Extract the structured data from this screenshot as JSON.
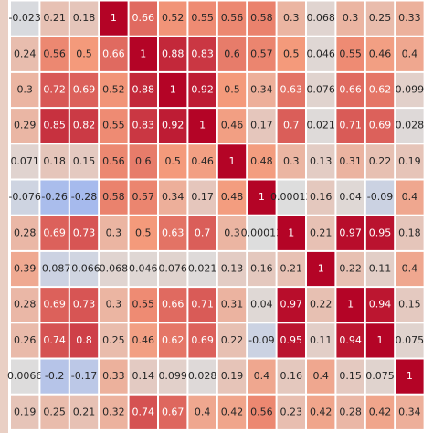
{
  "chart_data": {
    "type": "heatmap",
    "colormap": "coolwarm",
    "zlim": [
      -1,
      1
    ],
    "z": [
      [
        -0.023,
        0.21,
        0.18,
        1,
        0.66,
        0.52,
        0.55,
        0.56,
        0.58,
        0.3,
        0.068,
        0.3,
        0.25,
        0.33
      ],
      [
        0.24,
        0.56,
        0.5,
        0.66,
        1,
        0.88,
        0.83,
        0.6,
        0.57,
        0.5,
        0.046,
        0.55,
        0.46,
        0.4
      ],
      [
        0.3,
        0.72,
        0.69,
        0.52,
        0.88,
        1,
        0.92,
        0.5,
        0.34,
        0.63,
        0.076,
        0.66,
        0.62,
        0.099
      ],
      [
        0.29,
        0.85,
        0.82,
        0.55,
        0.83,
        0.92,
        1,
        0.46,
        0.17,
        0.7,
        0.021,
        0.71,
        0.69,
        0.028
      ],
      [
        0.071,
        0.18,
        0.15,
        0.56,
        0.6,
        0.5,
        0.46,
        1,
        0.48,
        0.3,
        0.13,
        0.31,
        0.22,
        0.19
      ],
      [
        -0.076,
        -0.26,
        -0.28,
        0.58,
        0.57,
        0.34,
        0.17,
        0.48,
        1,
        0.00013,
        0.16,
        0.04,
        -0.09,
        0.4
      ],
      [
        0.28,
        0.69,
        0.73,
        0.3,
        0.5,
        0.63,
        0.7,
        0.3,
        0.00013,
        1,
        0.21,
        0.97,
        0.95,
        0.18
      ],
      [
        0.39,
        -0.087,
        -0.066,
        0.068,
        0.046,
        0.076,
        0.021,
        0.13,
        0.16,
        0.21,
        1,
        0.22,
        0.11,
        0.4
      ],
      [
        0.28,
        0.69,
        0.73,
        0.3,
        0.55,
        0.66,
        0.71,
        0.31,
        0.04,
        0.97,
        0.22,
        1,
        0.94,
        0.15
      ],
      [
        0.26,
        0.74,
        0.8,
        0.25,
        0.46,
        0.62,
        0.69,
        0.22,
        -0.09,
        0.95,
        0.11,
        0.94,
        1,
        0.075
      ],
      [
        0.0066,
        -0.2,
        -0.17,
        0.33,
        0.14,
        0.099,
        0.028,
        0.19,
        0.4,
        0.16,
        0.4,
        0.15,
        0.075,
        1
      ],
      [
        0.19,
        0.25,
        0.21,
        0.32,
        0.74,
        0.67,
        0.4,
        0.42,
        0.56,
        0.23,
        0.42,
        0.28,
        0.42,
        0.34
      ]
    ]
  }
}
